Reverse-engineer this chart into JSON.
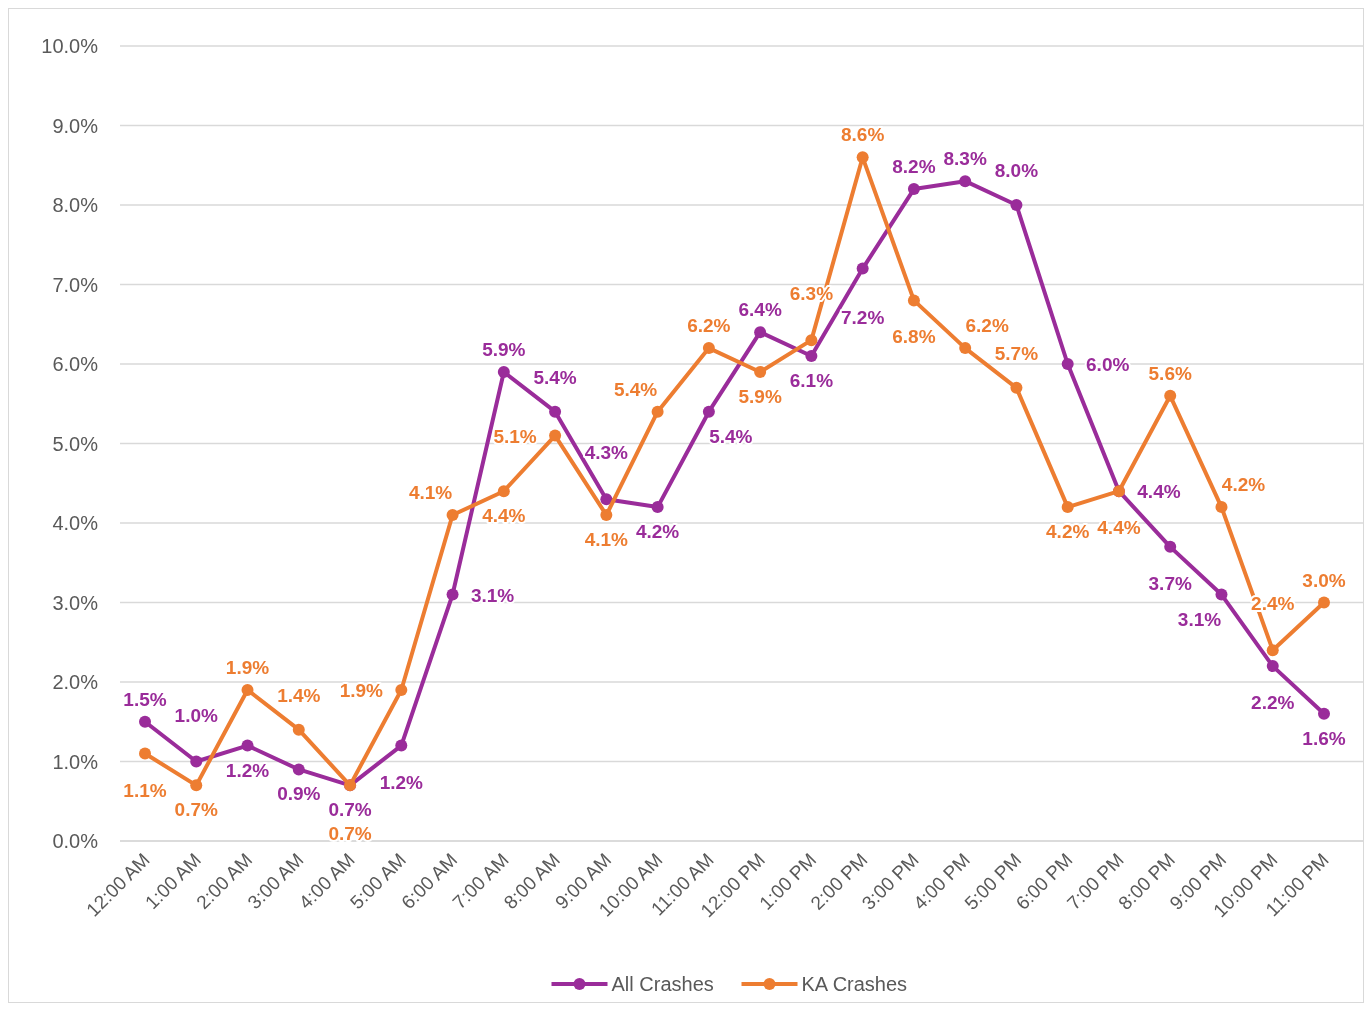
{
  "chart_data": {
    "type": "line",
    "categories": [
      "12:00 AM",
      "1:00 AM",
      "2:00 AM",
      "3:00 AM",
      "4:00 AM",
      "5:00 AM",
      "6:00 AM",
      "7:00 AM",
      "8:00 AM",
      "9:00 AM",
      "10:00 AM",
      "11:00 AM",
      "12:00 PM",
      "1:00 PM",
      "2:00 PM",
      "3:00 PM",
      "4:00 PM",
      "5:00 PM",
      "6:00 PM",
      "7:00 PM",
      "8:00 PM",
      "9:00 PM",
      "10:00 PM",
      "11:00 PM"
    ],
    "series": [
      {
        "name": "All Crashes",
        "color": "#9a2c9a",
        "values": [
          1.5,
          1.0,
          1.2,
          0.9,
          0.7,
          1.2,
          3.1,
          5.9,
          5.4,
          4.3,
          4.2,
          5.4,
          6.4,
          6.1,
          7.2,
          8.2,
          8.3,
          8.0,
          6.0,
          4.4,
          3.7,
          3.1,
          2.2,
          1.6
        ],
        "value_labels": [
          "1.5%",
          "1.0%",
          "1.2%",
          "0.9%",
          "0.7%",
          "1.2%",
          "3.1%",
          "5.9%",
          "5.4%",
          "4.3%",
          "4.2%",
          "5.4%",
          "6.4%",
          "6.1%",
          "7.2%",
          "8.2%",
          "8.3%",
          "8.0%",
          "6.0%",
          "4.4%",
          "3.7%",
          "3.1%",
          "2.2%",
          "1.6%"
        ]
      },
      {
        "name": "KA Crashes",
        "color": "#ed7d31",
        "values": [
          1.1,
          0.7,
          1.9,
          1.4,
          0.7,
          1.9,
          4.1,
          4.4,
          5.1,
          4.1,
          5.4,
          6.2,
          5.9,
          6.3,
          8.6,
          6.8,
          6.2,
          5.7,
          4.2,
          4.4,
          5.6,
          4.2,
          2.4,
          3.0
        ],
        "value_labels": [
          "1.1%",
          "0.7%",
          "1.9%",
          "1.4%",
          "0.7%",
          "1.9%",
          "4.1%",
          "4.4%",
          "5.1%",
          "4.1%",
          "5.4%",
          "6.2%",
          "5.9%",
          "6.3%",
          "8.6%",
          "6.8%",
          "6.2%",
          "5.7%",
          "4.2%",
          "4.4%",
          "5.6%",
          "4.2%",
          "2.4%",
          "3.0%"
        ]
      }
    ],
    "ylim": [
      0,
      10
    ],
    "yticks": [
      {
        "value": 0,
        "label": "0.0%"
      },
      {
        "value": 1,
        "label": "1.0%"
      },
      {
        "value": 2,
        "label": "2.0%"
      },
      {
        "value": 3,
        "label": "3.0%"
      },
      {
        "value": 4,
        "label": "4.0%"
      },
      {
        "value": 5,
        "label": "5.0%"
      },
      {
        "value": 6,
        "label": "6.0%"
      },
      {
        "value": 7,
        "label": "7.0%"
      },
      {
        "value": 8,
        "label": "8.0%"
      },
      {
        "value": 9,
        "label": "9.0%"
      },
      {
        "value": 10,
        "label": "10.0%"
      }
    ],
    "grid": "y",
    "legend": "bottom",
    "marker": "circle",
    "line_style": "solid"
  }
}
